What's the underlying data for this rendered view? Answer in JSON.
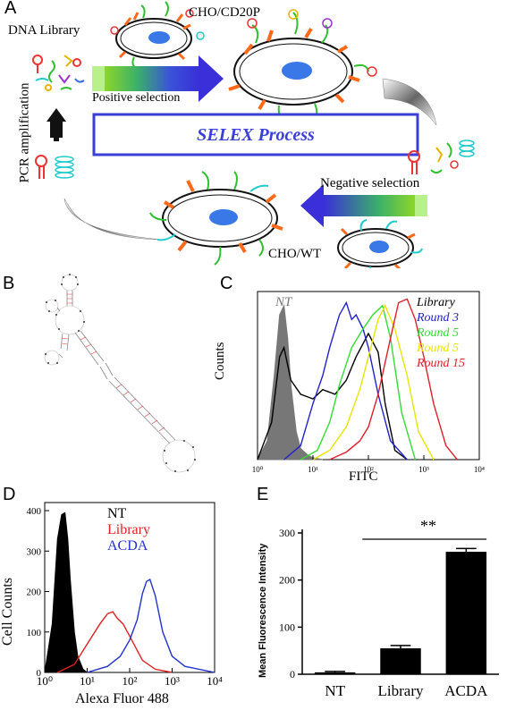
{
  "panels": {
    "A": {
      "letter": "A",
      "dna_library": "DNA Library",
      "cho_cd20p": "CHO/CD20P",
      "positive_selection": "Positive selection",
      "selex_process": "SELEX Process",
      "negative_selection": "Negative selection",
      "pcr_amplification": "PCR amplification",
      "cho_wt": "CHO/WT"
    },
    "B": {
      "letter": "B"
    },
    "C": {
      "letter": "C",
      "ylabel": "Counts",
      "xlabel": "FITC",
      "nt_label": "NT",
      "legend": [
        {
          "label": "Library",
          "color": "#000000"
        },
        {
          "label": "Round 3",
          "color": "#2222cc"
        },
        {
          "label": "Round 5",
          "color": "#33dd33"
        },
        {
          "label": "Round 5",
          "color": "#e6e600"
        },
        {
          "label": "Round 15",
          "color": "#e0202a"
        }
      ],
      "xticks": [
        "10⁰",
        "10¹",
        "10²",
        "10³",
        "10⁴"
      ]
    },
    "D": {
      "letter": "D",
      "ylabel": "Cell Counts",
      "xlabel": "Alexa Fluor 488",
      "yticks": [
        "0",
        "100",
        "200",
        "300",
        "400"
      ],
      "xticks": [
        "10⁰",
        "10¹",
        "10²",
        "10³",
        "10⁴"
      ],
      "legend": [
        {
          "label": "NT",
          "color": "#000000"
        },
        {
          "label": "Library",
          "color": "#e02020"
        },
        {
          "label": "ACDA",
          "color": "#2233cc"
        }
      ]
    },
    "E": {
      "letter": "E",
      "significance": "**"
    }
  },
  "chart_data": [
    {
      "panel": "C",
      "type": "area",
      "xlabel": "FITC",
      "ylabel": "Counts",
      "xscale": "log",
      "xlim": [
        1,
        10000
      ],
      "series": [
        {
          "name": "NT",
          "color": "#777777",
          "filled": true,
          "x": [
            1,
            1.5,
            2,
            2.5,
            3,
            3.5,
            4,
            5,
            6,
            8,
            10,
            15
          ],
          "y": [
            0,
            20,
            90,
            155,
            165,
            130,
            80,
            30,
            12,
            5,
            2,
            0
          ]
        },
        {
          "name": "Library",
          "color": "#000000",
          "x": [
            1,
            1.8,
            2.5,
            3,
            4,
            6,
            10,
            15,
            25,
            40,
            60,
            100,
            150,
            200,
            300,
            500
          ],
          "y": [
            0,
            40,
            110,
            120,
            85,
            70,
            65,
            75,
            70,
            85,
            110,
            135,
            115,
            60,
            10,
            0
          ]
        },
        {
          "name": "Round 3",
          "color": "#2222cc",
          "x": [
            3,
            6,
            10,
            15,
            20,
            30,
            40,
            50,
            60,
            80,
            100,
            150,
            250,
            500
          ],
          "y": [
            0,
            15,
            60,
            90,
            120,
            155,
            168,
            150,
            155,
            140,
            120,
            70,
            20,
            0
          ]
        },
        {
          "name": "Round 5",
          "color": "#33dd33",
          "x": [
            6,
            12,
            20,
            30,
            50,
            80,
            120,
            180,
            250,
            400,
            700
          ],
          "y": [
            0,
            10,
            40,
            80,
            120,
            140,
            155,
            165,
            130,
            50,
            0
          ]
        },
        {
          "name": "Round 5",
          "color": "#e6e600",
          "x": [
            10,
            20,
            40,
            70,
            100,
            150,
            200,
            300,
            500,
            800,
            1500
          ],
          "y": [
            0,
            10,
            35,
            75,
            110,
            150,
            165,
            140,
            90,
            30,
            0
          ]
        },
        {
          "name": "Round 15",
          "color": "#e0202a",
          "x": [
            20,
            40,
            70,
            100,
            150,
            250,
            350,
            500,
            700,
            1000,
            1500,
            2500,
            4000
          ],
          "y": [
            0,
            8,
            20,
            35,
            70,
            130,
            168,
            172,
            150,
            110,
            60,
            15,
            0
          ]
        }
      ]
    },
    {
      "panel": "D",
      "type": "area",
      "xlabel": "Alexa Fluor 488",
      "ylabel": "Cell Counts",
      "xscale": "log",
      "xlim": [
        1,
        10000
      ],
      "ylim": [
        0,
        420
      ],
      "series": [
        {
          "name": "NT",
          "color": "#000000",
          "filled": true,
          "x": [
            1,
            1.5,
            2,
            2.5,
            3,
            3.5,
            4,
            5,
            6,
            8,
            10
          ],
          "y": [
            0,
            120,
            330,
            390,
            395,
            330,
            230,
            100,
            40,
            8,
            0
          ]
        },
        {
          "name": "Library",
          "color": "#e02020",
          "x": [
            2,
            5,
            10,
            20,
            30,
            40,
            50,
            70,
            100,
            200,
            400,
            1000
          ],
          "y": [
            0,
            20,
            70,
            120,
            145,
            150,
            135,
            120,
            90,
            30,
            8,
            0
          ]
        },
        {
          "name": "ACDA",
          "color": "#2233cc",
          "x": [
            10,
            30,
            60,
            100,
            150,
            200,
            250,
            300,
            400,
            600,
            1000,
            2000,
            10000
          ],
          "y": [
            0,
            15,
            40,
            80,
            130,
            195,
            225,
            230,
            190,
            100,
            40,
            15,
            0
          ]
        }
      ]
    },
    {
      "panel": "E",
      "type": "bar",
      "categories": [
        "NT",
        "Library",
        "ACDA"
      ],
      "values": [
        4,
        55,
        260
      ],
      "errors": [
        2,
        6,
        7
      ],
      "ylabel": "Mean Fluorescence Intensity",
      "ylim": [
        0,
        300
      ],
      "yticks": [
        0,
        100,
        200,
        300
      ],
      "annotation": "**"
    }
  ]
}
